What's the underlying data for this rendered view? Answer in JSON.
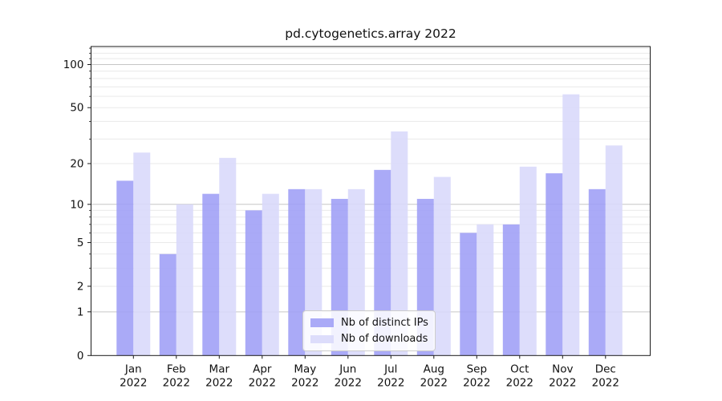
{
  "title": "pd.cytogenetics.array 2022",
  "legend": {
    "items": [
      {
        "label": "Nb of distinct IPs",
        "color": "#9e9ef6"
      },
      {
        "label": "Nb of downloads",
        "color": "#d8d8fa"
      }
    ]
  },
  "y_axis": {
    "tick_labels": [
      "100",
      "50",
      "20",
      "10",
      "5",
      "2",
      "1",
      "0"
    ],
    "tick_values": [
      100,
      50,
      20,
      10,
      5,
      2,
      1,
      0
    ]
  },
  "chart_data": {
    "type": "bar",
    "title": "pd.cytogenetics.array 2022",
    "categories": [
      "Jan 2022",
      "Feb 2022",
      "Mar 2022",
      "Apr 2022",
      "May 2022",
      "Jun 2022",
      "Jul 2022",
      "Aug 2022",
      "Sep 2022",
      "Oct 2022",
      "Nov 2022",
      "Dec 2022"
    ],
    "series": [
      {
        "name": "Nb of distinct IPs",
        "color": "#9e9ef6",
        "values": [
          15,
          4,
          12,
          9,
          13,
          11,
          18,
          11,
          6,
          7,
          17,
          13
        ]
      },
      {
        "name": "Nb of downloads",
        "color": "#d8d8fa",
        "values": [
          24,
          10,
          22,
          12,
          13,
          13,
          34,
          16,
          7,
          19,
          62,
          27
        ]
      }
    ],
    "xlabel": "",
    "ylabel": "",
    "yscale": "log1p",
    "ylim": [
      0,
      133
    ],
    "y_major_gridlines": [
      1,
      10,
      100
    ],
    "y_minor_gridlines": [
      2,
      3,
      4,
      5,
      6,
      7,
      8,
      9,
      20,
      30,
      40,
      50,
      60,
      70,
      80,
      90,
      110,
      120,
      130
    ],
    "grid": true,
    "legend_position": "lower center"
  }
}
